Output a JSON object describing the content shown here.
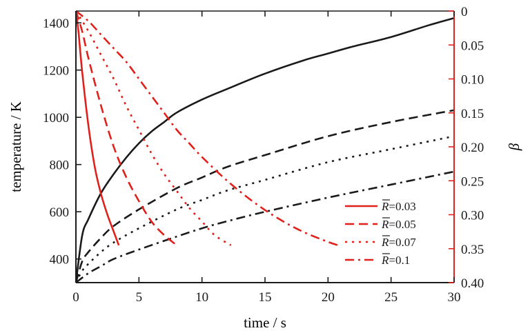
{
  "chart_data": {
    "type": "line",
    "xlabel": "time / s",
    "ylabel_left": "temperature / K",
    "ylabel_right": "β",
    "xlim": [
      0,
      30
    ],
    "ylim_left": [
      300,
      1450
    ],
    "ylim_right": [
      0,
      0.4
    ],
    "right_axis_inverted": true,
    "xticks": [
      0,
      5,
      10,
      15,
      20,
      25,
      30
    ],
    "yticks_left": [
      400,
      600,
      800,
      1000,
      1200,
      1400
    ],
    "yticks_right": [
      "0",
      "0.05",
      "0.10",
      "0.15",
      "0.20",
      "0.25",
      "0.30",
      "0.35",
      "0.40"
    ],
    "colors": {
      "temperature": "#1a1a1a",
      "beta": "#e0201b"
    },
    "legend": {
      "position": "lower-right",
      "entries": [
        {
          "label": "R=0.03",
          "symbol": "R",
          "value": "=0.03",
          "dash": "solid"
        },
        {
          "label": "R=0.05",
          "symbol": "R",
          "value": "=0.05",
          "dash": "dashed"
        },
        {
          "label": "R=0.07",
          "symbol": "R",
          "value": "=0.07",
          "dash": "dotted"
        },
        {
          "label": "R=0.1",
          "symbol": "R",
          "value": "=0.1",
          "dash": "dashdot"
        }
      ]
    },
    "temperature_series": [
      {
        "R": "0.03",
        "dash": "solid",
        "x": [
          0,
          0.5,
          1,
          2,
          3,
          4,
          5,
          6,
          7,
          8,
          10,
          12,
          15,
          18,
          20,
          22,
          25,
          28,
          30
        ],
        "y": [
          300,
          500,
          570,
          680,
          760,
          830,
          890,
          940,
          980,
          1020,
          1075,
          1120,
          1185,
          1240,
          1270,
          1300,
          1340,
          1390,
          1420
        ]
      },
      {
        "R": "0.05",
        "dash": "dashed",
        "x": [
          0,
          0.5,
          1,
          2,
          3,
          5,
          8,
          10,
          12,
          15,
          20,
          25,
          30
        ],
        "y": [
          300,
          390,
          430,
          490,
          540,
          610,
          700,
          745,
          790,
          840,
          920,
          980,
          1030
        ]
      },
      {
        "R": "0.07",
        "dash": "dotted",
        "x": [
          0,
          0.5,
          1,
          2,
          3,
          5,
          8,
          10,
          12,
          15,
          20,
          25,
          30
        ],
        "y": [
          300,
          350,
          380,
          430,
          470,
          530,
          610,
          650,
          690,
          735,
          810,
          865,
          920
        ]
      },
      {
        "R": "0.1",
        "dash": "dashdot",
        "x": [
          0,
          1,
          2,
          3,
          5,
          8,
          10,
          12,
          15,
          20,
          25,
          30
        ],
        "y": [
          300,
          340,
          370,
          400,
          440,
          495,
          530,
          560,
          600,
          660,
          715,
          770
        ]
      }
    ],
    "beta_series": [
      {
        "R": "0.03",
        "dash": "solid",
        "x": [
          0,
          0.2,
          0.5,
          1,
          1.5,
          2,
          2.5,
          3,
          3.4
        ],
        "y": [
          0,
          0.03,
          0.09,
          0.17,
          0.23,
          0.27,
          0.3,
          0.325,
          0.345
        ]
      },
      {
        "R": "0.05",
        "dash": "dashed",
        "x": [
          0,
          0.5,
          1,
          2,
          3,
          4,
          5,
          6,
          7,
          8
        ],
        "y": [
          0,
          0.03,
          0.07,
          0.14,
          0.2,
          0.245,
          0.28,
          0.31,
          0.33,
          0.345
        ]
      },
      {
        "R": "0.07",
        "dash": "dotted",
        "x": [
          0,
          1,
          2,
          3,
          4,
          5,
          6,
          7,
          8,
          9,
          10,
          11,
          12.3
        ],
        "y": [
          0,
          0.03,
          0.065,
          0.1,
          0.14,
          0.175,
          0.21,
          0.24,
          0.265,
          0.29,
          0.31,
          0.33,
          0.345
        ]
      },
      {
        "R": "0.1",
        "dash": "dashdot",
        "x": [
          0,
          1,
          2,
          3,
          4,
          5,
          6,
          7,
          8,
          9,
          10,
          12,
          14,
          16,
          18,
          20,
          20.8
        ],
        "y": [
          0,
          0.015,
          0.035,
          0.055,
          0.075,
          0.1,
          0.125,
          0.15,
          0.175,
          0.195,
          0.215,
          0.25,
          0.28,
          0.305,
          0.325,
          0.34,
          0.345
        ]
      }
    ]
  }
}
